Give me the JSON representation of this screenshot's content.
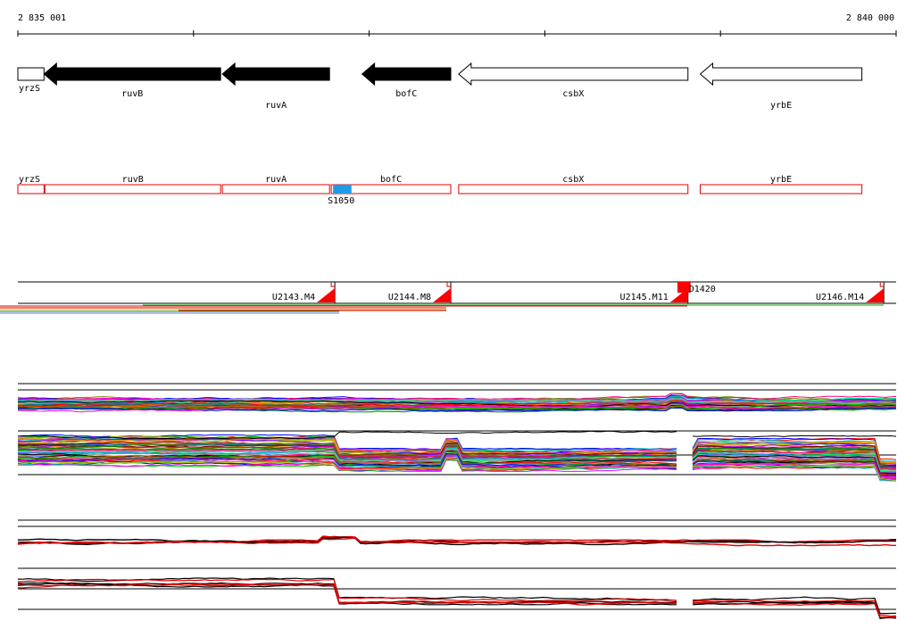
{
  "ruler": {
    "start_label": "2 835 001",
    "end_label": "2 840 000",
    "start": 2835001,
    "end": 2840000
  },
  "genes": [
    {
      "name": "yrzS",
      "start": 2835001,
      "end": 2835150,
      "strand": "+",
      "filled": false
    },
    {
      "name": "ruvB",
      "start": 2835150,
      "end": 2836155,
      "strand": "-",
      "filled": true
    },
    {
      "name": "ruvA",
      "start": 2836165,
      "end": 2836775,
      "strand": "-",
      "filled": true
    },
    {
      "name": "bofC",
      "start": 2836960,
      "end": 2837465,
      "strand": "-",
      "filled": true
    },
    {
      "name": "csbX",
      "start": 2837510,
      "end": 2838815,
      "strand": "-",
      "filled": false
    },
    {
      "name": "yrbE",
      "start": 2838885,
      "end": 2839805,
      "strand": "-",
      "filled": false
    }
  ],
  "annotations": [
    {
      "name": "yrzS",
      "start": 2835001,
      "end": 2835150
    },
    {
      "name": "ruvB",
      "start": 2835155,
      "end": 2836155
    },
    {
      "name": "ruvA",
      "start": 2836165,
      "end": 2836775
    },
    {
      "name": "bofC",
      "start": 2836785,
      "end": 2837465
    },
    {
      "name": "csbX",
      "start": 2837510,
      "end": 2838815
    },
    {
      "name": "yrbE",
      "start": 2838885,
      "end": 2839805
    }
  ],
  "feature": {
    "name": "S1050",
    "start": 2836795,
    "end": 2836900,
    "color": "#1e9be8"
  },
  "units": [
    {
      "name": "U2143.M4",
      "end": 2836805
    },
    {
      "name": "U2144.M8",
      "end": 2837465
    },
    {
      "name": "U2145.M11",
      "end": 2838815
    },
    {
      "name": "U2146.M14",
      "end": 2839930
    }
  ],
  "marker": {
    "name": "D1420",
    "start": 2838755,
    "end": 2838830
  },
  "colors": {
    "gene_fill": "#000000",
    "annotation": "#e00000",
    "unit_triangle": "#ff0000",
    "axis": "#000000"
  }
}
